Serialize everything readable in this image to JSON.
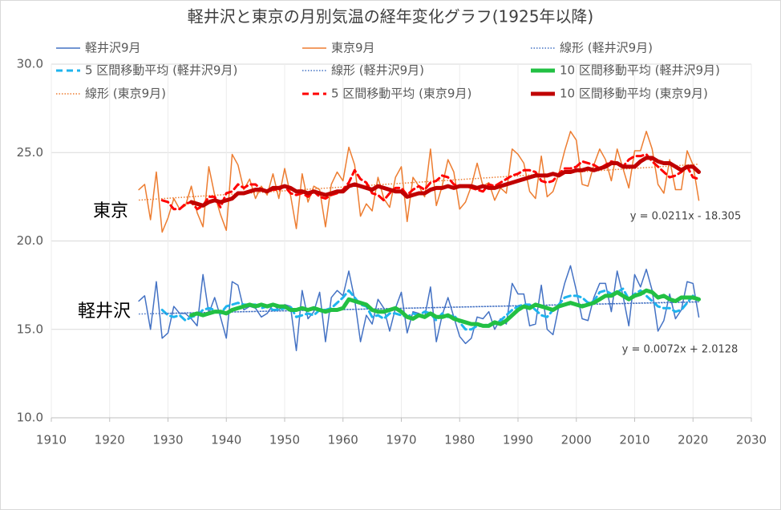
{
  "chart_data": {
    "type": "line",
    "title": "軽井沢と東京の月別気温の経年変化グラフ(1925年以降)",
    "xlim": [
      1910,
      2030
    ],
    "xticks": [
      1910,
      1920,
      1930,
      1940,
      1950,
      1960,
      1970,
      1980,
      1990,
      2000,
      2010,
      2020,
      2030
    ],
    "ylim": [
      10,
      30
    ],
    "yticks": [
      {
        "value": 10,
        "label": "10.0"
      },
      {
        "value": 15,
        "label": "15.0"
      },
      {
        "value": 20,
        "label": "20.0"
      },
      {
        "value": 25,
        "label": "25.0"
      },
      {
        "value": 30,
        "label": "30.0"
      }
    ],
    "grid": true,
    "legend": "top",
    "x": [
      1925,
      1926,
      1927,
      1928,
      1929,
      1930,
      1931,
      1932,
      1933,
      1934,
      1935,
      1936,
      1937,
      1938,
      1939,
      1940,
      1941,
      1942,
      1943,
      1944,
      1945,
      1946,
      1947,
      1948,
      1949,
      1950,
      1951,
      1952,
      1953,
      1954,
      1955,
      1956,
      1957,
      1958,
      1959,
      1960,
      1961,
      1962,
      1963,
      1964,
      1965,
      1966,
      1967,
      1968,
      1969,
      1970,
      1971,
      1972,
      1973,
      1974,
      1975,
      1976,
      1977,
      1978,
      1979,
      1980,
      1981,
      1982,
      1983,
      1984,
      1985,
      1986,
      1987,
      1988,
      1989,
      1990,
      1991,
      1992,
      1993,
      1994,
      1995,
      1996,
      1997,
      1998,
      1999,
      2000,
      2001,
      2002,
      2003,
      2004,
      2005,
      2006,
      2007,
      2008,
      2009,
      2010,
      2011,
      2012,
      2013,
      2014,
      2015,
      2016,
      2017,
      2018,
      2019,
      2020,
      2021
    ],
    "series": [
      {
        "name": "軽井沢9月",
        "color": "#4472c4",
        "style": "solid",
        "width": 1.5,
        "values": [
          16.6,
          16.9,
          15.0,
          17.7,
          14.5,
          14.8,
          16.3,
          15.9,
          15.9,
          15.6,
          15.2,
          18.1,
          15.9,
          16.8,
          15.7,
          14.5,
          17.7,
          17.5,
          16.1,
          16.3,
          16.2,
          15.7,
          15.9,
          16.4,
          16.1,
          16.4,
          16.3,
          13.8,
          17.2,
          15.6,
          16.0,
          17.1,
          14.3,
          16.8,
          17.2,
          16.9,
          18.3,
          16.7,
          14.3,
          15.8,
          15.3,
          16.7,
          16.2,
          14.9,
          16.2,
          17.1,
          14.8,
          16.0,
          15.9,
          15.7,
          17.4,
          14.3,
          15.8,
          16.8,
          15.7,
          14.6,
          14.2,
          14.5,
          15.7,
          15.6,
          16.0,
          15.0,
          15.6,
          15.3,
          17.6,
          17.0,
          17.0,
          15.2,
          15.3,
          17.5,
          15.0,
          14.7,
          16.3,
          17.6,
          18.6,
          17.2,
          15.6,
          15.5,
          16.8,
          17.6,
          17.6,
          16.0,
          18.3,
          16.9,
          15.2,
          18.1,
          17.4,
          18.4,
          17.2,
          14.9,
          15.5,
          17.0,
          15.6,
          16.1,
          17.7,
          17.6,
          15.7
        ]
      },
      {
        "name": "東京9月",
        "color": "#ed7d31",
        "style": "solid",
        "width": 1.5,
        "values": [
          22.9,
          23.2,
          21.2,
          23.9,
          20.5,
          21.3,
          22.4,
          21.8,
          22.0,
          23.1,
          21.6,
          20.8,
          24.2,
          22.6,
          21.5,
          20.6,
          24.9,
          24.3,
          22.9,
          23.5,
          22.4,
          23.1,
          22.6,
          23.8,
          22.4,
          24.1,
          22.6,
          20.7,
          23.8,
          22.2,
          23.1,
          22.9,
          20.8,
          23.2,
          23.9,
          23.4,
          25.3,
          24.3,
          21.4,
          22.1,
          21.7,
          23.6,
          22.4,
          21.9,
          23.6,
          24.2,
          21.1,
          23.6,
          23.1,
          22.5,
          25.2,
          22.0,
          23.1,
          24.6,
          23.9,
          21.8,
          22.2,
          23.1,
          24.4,
          23.1,
          23.3,
          22.3,
          23.0,
          22.7,
          25.2,
          24.9,
          24.4,
          22.8,
          22.4,
          24.8,
          22.5,
          22.8,
          23.8,
          25.1,
          26.2,
          25.7,
          23.2,
          23.1,
          24.3,
          25.2,
          24.6,
          23.4,
          25.2,
          24.1,
          23.0,
          25.1,
          25.1,
          26.2,
          25.2,
          23.2,
          22.7,
          24.6,
          22.9,
          22.9,
          25.1,
          24.3,
          22.3
        ]
      },
      {
        "name": "線形 (軽井沢9月)",
        "color": "#4472c4",
        "style": "dotted",
        "width": 1.5,
        "x": [
          1925,
          2021
        ],
        "values": [
          15.87,
          16.56
        ]
      },
      {
        "name": "5 区間移動平均 (軽井沢9月)",
        "color": "#1fb4ee",
        "style": "dashed",
        "width": 3,
        "values": [
          null,
          null,
          null,
          null,
          16.1,
          15.8,
          15.7,
          15.8,
          15.5,
          15.7,
          15.8,
          16.1,
          16.2,
          16.1,
          15.9,
          16.3,
          16.4,
          16.5,
          16.4,
          16.4,
          16.4,
          16.2,
          16.3,
          16.1,
          16.1,
          16.2,
          16.3,
          15.7,
          15.8,
          15.9,
          15.8,
          16.1,
          16.1,
          16.2,
          16.5,
          16.8,
          17.2,
          16.8,
          16.4,
          16.3,
          15.7,
          15.8,
          15.6,
          15.9,
          15.9,
          15.8,
          15.7,
          15.9,
          15.8,
          16.0,
          15.9,
          15.5,
          15.9,
          15.7,
          15.8,
          15.4,
          15.0,
          15.0,
          15.2,
          15.2,
          15.3,
          15.3,
          15.5,
          15.8,
          16.1,
          16.3,
          16.4,
          16.4,
          16.1,
          15.8,
          15.7,
          16.1,
          16.4,
          16.8,
          16.9,
          16.9,
          16.8,
          16.5,
          16.6,
          17.1,
          17.2,
          17.0,
          17.1,
          17.3,
          16.7,
          17.0,
          17.2,
          16.9,
          16.6,
          16.3,
          16.2,
          16.2,
          16.0,
          16.1,
          16.5,
          16.9,
          16.7
        ]
      },
      {
        "name": "線形 (軽井沢9月)",
        "color": "#4472c4",
        "style": "dotted",
        "width": 1.5,
        "x": [
          1929,
          2021
        ],
        "values": [
          15.9,
          16.55
        ]
      },
      {
        "name": "10 区間移動平均 (軽井沢9月)",
        "color": "#22c043",
        "style": "solid",
        "width": 5,
        "values": [
          null,
          null,
          null,
          null,
          null,
          null,
          null,
          null,
          null,
          15.8,
          15.9,
          15.8,
          15.9,
          16.0,
          16.0,
          15.9,
          16.1,
          16.2,
          16.3,
          16.4,
          16.3,
          16.4,
          16.3,
          16.4,
          16.3,
          16.3,
          16.1,
          16.1,
          16.2,
          16.1,
          16.2,
          16.1,
          16.0,
          16.1,
          16.1,
          16.2,
          16.7,
          16.6,
          16.5,
          16.4,
          16.1,
          16.0,
          16.0,
          16.1,
          16.2,
          16.0,
          15.7,
          15.6,
          15.8,
          15.7,
          15.9,
          15.7,
          15.7,
          15.8,
          15.6,
          15.5,
          15.4,
          15.3,
          15.3,
          15.2,
          15.2,
          15.4,
          15.3,
          15.5,
          15.8,
          16.1,
          16.3,
          16.2,
          16.4,
          16.3,
          16.2,
          16.1,
          16.3,
          16.4,
          16.5,
          16.4,
          16.3,
          16.4,
          16.5,
          16.7,
          16.9,
          16.9,
          17.1,
          16.9,
          16.7,
          16.9,
          17.0,
          17.2,
          17.1,
          16.8,
          16.9,
          16.7,
          16.6,
          16.8,
          16.8,
          16.8,
          16.7
        ]
      },
      {
        "name": "線形 (東京9月)",
        "color": "#ed7d31",
        "style": "dotted",
        "width": 1.5,
        "x": [
          1925,
          2021
        ],
        "values": [
          22.31,
          24.34
        ]
      },
      {
        "name": "5 区間移動平均 (東京9月)",
        "color": "#ff0000",
        "style": "dashed",
        "width": 3,
        "values": [
          null,
          null,
          null,
          null,
          22.3,
          22.2,
          21.8,
          21.8,
          22.1,
          22.2,
          21.8,
          22.0,
          22.5,
          22.5,
          21.9,
          22.7,
          22.8,
          23.2,
          23.0,
          23.2,
          23.2,
          22.9,
          22.8,
          22.9,
          22.9,
          23.1,
          22.7,
          22.6,
          22.7,
          22.5,
          22.8,
          22.5,
          22.4,
          22.6,
          22.7,
          22.9,
          23.3,
          24.0,
          23.5,
          23.3,
          22.7,
          22.6,
          22.3,
          22.7,
          23.0,
          23.0,
          22.6,
          22.9,
          23.1,
          22.9,
          23.3,
          23.4,
          23.7,
          23.6,
          23.2,
          23.1,
          23.1,
          23.0,
          22.9,
          22.8,
          23.2,
          23.1,
          23.3,
          23.5,
          23.7,
          23.8,
          24.0,
          24.0,
          23.9,
          23.4,
          23.3,
          23.4,
          23.8,
          24.1,
          24.1,
          24.2,
          24.5,
          24.4,
          24.3,
          24.1,
          24.3,
          24.5,
          24.4,
          24.2,
          24.6,
          24.8,
          24.8,
          24.9,
          24.5,
          24.2,
          23.9,
          23.6,
          23.7,
          23.9,
          24.2,
          23.6,
          23.5
        ]
      },
      {
        "name": "10 区間移動平均 (東京9月)",
        "color": "#c00000",
        "style": "solid",
        "width": 5,
        "values": [
          null,
          null,
          null,
          null,
          null,
          null,
          null,
          null,
          null,
          22.2,
          22.1,
          22.0,
          22.2,
          22.3,
          22.2,
          22.3,
          22.4,
          22.7,
          22.7,
          22.8,
          22.9,
          22.9,
          22.8,
          23.0,
          23.0,
          23.1,
          23.0,
          22.8,
          22.8,
          22.7,
          22.8,
          22.7,
          22.6,
          22.7,
          22.8,
          22.8,
          23.1,
          23.2,
          23.1,
          23.0,
          22.9,
          23.1,
          23.0,
          22.9,
          22.8,
          22.8,
          22.5,
          22.6,
          22.7,
          22.7,
          22.9,
          23.0,
          23.0,
          23.1,
          23.0,
          23.1,
          23.1,
          23.1,
          23.0,
          23.1,
          23.0,
          23.0,
          23.1,
          23.2,
          23.3,
          23.4,
          23.5,
          23.6,
          23.7,
          23.7,
          23.7,
          23.8,
          23.7,
          23.9,
          23.9,
          24.0,
          24.0,
          24.1,
          24.0,
          24.1,
          24.2,
          24.4,
          24.4,
          24.2,
          24.2,
          24.2,
          24.5,
          24.7,
          24.7,
          24.5,
          24.4,
          24.4,
          24.2,
          24.0,
          24.2,
          24.2,
          23.9
        ]
      }
    ],
    "labels": [
      "東京",
      "軽井沢"
    ],
    "equations": [
      "y = 0.0211x - 18.305",
      "y = 0.0072x + 2.0128"
    ]
  }
}
